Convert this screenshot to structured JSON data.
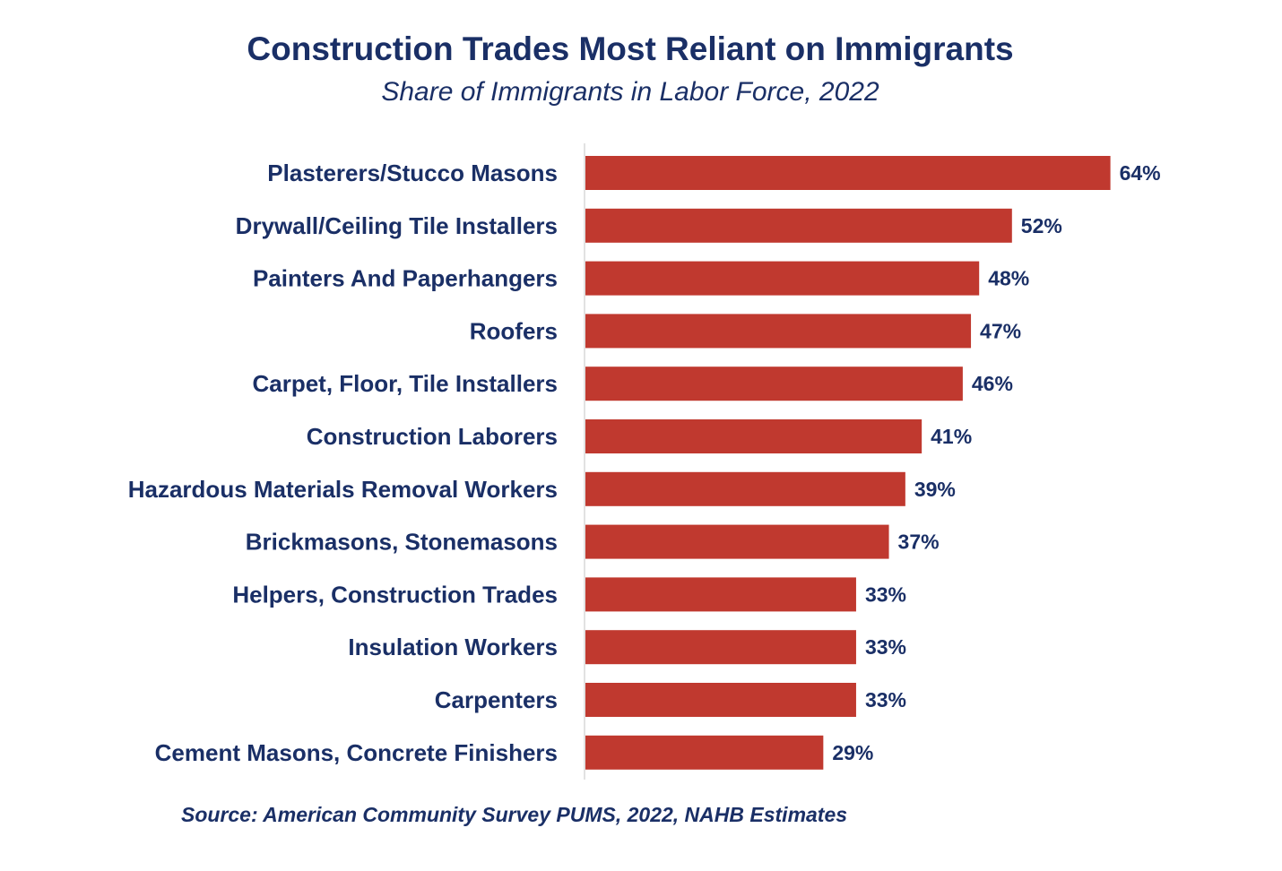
{
  "chart_data": {
    "type": "bar",
    "orientation": "horizontal",
    "title": "Construction Trades Most Reliant on Immigrants",
    "subtitle": "Share of Immigrants in Labor Force, 2022",
    "categories": [
      "Plasterers/Stucco Masons",
      "Drywall/Ceiling Tile Installers",
      "Painters And Paperhangers",
      "Roofers",
      "Carpet, Floor, Tile Installers",
      "Construction Laborers",
      "Hazardous Materials Removal Workers",
      "Brickmasons, Stonemasons",
      "Helpers, Construction Trades",
      "Insulation Workers",
      "Carpenters",
      "Cement Masons, Concrete Finishers"
    ],
    "values": [
      64,
      52,
      48,
      47,
      46,
      41,
      39,
      37,
      33,
      33,
      33,
      29
    ],
    "value_labels": [
      "64%",
      "52%",
      "48%",
      "47%",
      "46%",
      "41%",
      "39%",
      "37%",
      "33%",
      "33%",
      "33%",
      "29%"
    ],
    "xlim": [
      0,
      100
    ],
    "unit": "%",
    "grid": false,
    "legend": "none",
    "bar_color": "#c0392f",
    "text_color": "#1a2f66"
  },
  "source": "Source: American Community Survey PUMS, 2022, NAHB Estimates"
}
